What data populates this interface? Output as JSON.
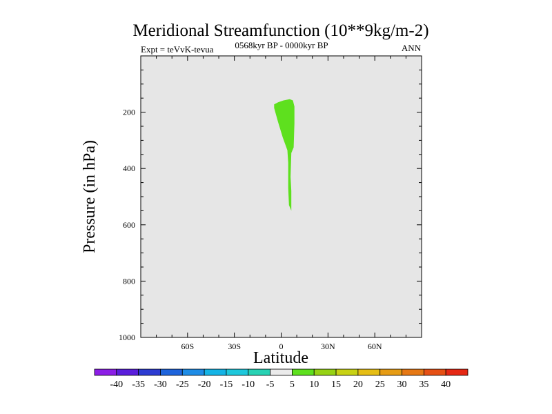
{
  "chart_data": {
    "type": "contour",
    "title": "Meridional Streamfunction (10**9kg/m-2)",
    "left_subtitle": "Expt = teVvK-tevua",
    "center_subtitle": "0568kyr BP - 0000kyr BP",
    "right_subtitle": "ANN",
    "xlabel": "Latitude",
    "ylabel": "Pressure (in hPa)",
    "xlim": [
      -90,
      90
    ],
    "ylim": [
      1000,
      0
    ],
    "y_reversed": true,
    "x_ticks": [
      {
        "value": -60,
        "label": "60S"
      },
      {
        "value": -30,
        "label": "30S"
      },
      {
        "value": 0,
        "label": "0"
      },
      {
        "value": 30,
        "label": "30N"
      },
      {
        "value": 60,
        "label": "60N"
      }
    ],
    "y_ticks": [
      {
        "value": 200,
        "label": "200"
      },
      {
        "value": 400,
        "label": "400"
      },
      {
        "value": 600,
        "label": "600"
      },
      {
        "value": 800,
        "label": "800"
      },
      {
        "value": 1000,
        "label": "1000"
      }
    ],
    "background_color": "#e6e6e6",
    "filled_regions": [
      {
        "level": "5 to 10",
        "color": "#5ee01e",
        "outline": [
          [
            -4.5,
            172
          ],
          [
            -2,
            165
          ],
          [
            1.5,
            158
          ],
          [
            5.5,
            154
          ],
          [
            7.5,
            158
          ],
          [
            8.5,
            180
          ],
          [
            8.5,
            240
          ],
          [
            8,
            325
          ],
          [
            6.5,
            345
          ],
          [
            6,
            430
          ],
          [
            6.5,
            480
          ],
          [
            6.5,
            550
          ],
          [
            5,
            530
          ],
          [
            4.5,
            470
          ],
          [
            4.5,
            380
          ],
          [
            4,
            335
          ],
          [
            1,
            290
          ],
          [
            -2,
            235
          ],
          [
            -4.5,
            185
          ]
        ]
      }
    ],
    "colorbar": {
      "labels": [
        "-40",
        "-35",
        "-30",
        "-25",
        "-20",
        "-15",
        "-10",
        "-5",
        "5",
        "10",
        "15",
        "20",
        "25",
        "30",
        "35",
        "40"
      ],
      "colors": [
        "#8c1ee6",
        "#5a1edc",
        "#2d3cd2",
        "#1e64dc",
        "#1e8ce6",
        "#14b4e6",
        "#1ec8dc",
        "#28d2b4",
        "#ebebeb",
        "#5ee01e",
        "#96d214",
        "#c8d214",
        "#e6be14",
        "#e69c14",
        "#e67814",
        "#e65014",
        "#e62814"
      ]
    }
  }
}
